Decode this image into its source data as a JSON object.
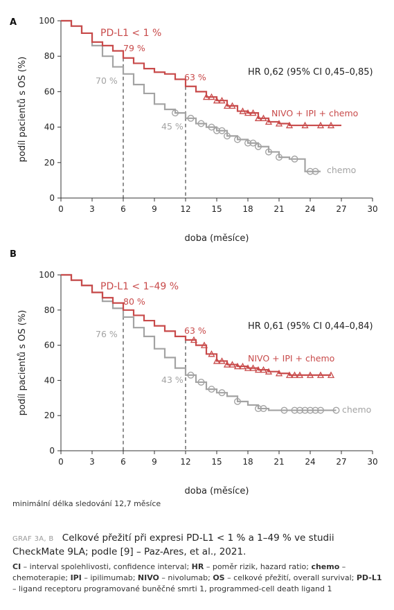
{
  "panels": [
    {
      "letter": "A",
      "annotations": {
        "subgroup": "PD-L1 < 1 %",
        "red_pct_6": "79 %",
        "grey_pct_6": "70 %",
        "red_pct_12": "63 %",
        "grey_pct_12": "45 %",
        "hr": "HR 0,62 (95% CI 0,45–0,85)",
        "red_label": "NIVO + IPI + chemo",
        "grey_label": "chemo"
      }
    },
    {
      "letter": "B",
      "annotations": {
        "subgroup": "PD-L1 < 1–49 %",
        "red_pct_6": "80 %",
        "grey_pct_6": "76 %",
        "red_pct_12": "63 %",
        "grey_pct_12": "43 %",
        "hr": "HR 0,61 (95% CI 0,44–0,84)",
        "red_label": "NIVO + IPI + chemo",
        "grey_label": "chemo"
      }
    }
  ],
  "chart_data": [
    {
      "type": "line",
      "title": "A",
      "xlabel": "doba (měsíce)",
      "ylabel": "podíl pacientů s OS (%)",
      "xlim": [
        0,
        30
      ],
      "ylim": [
        0,
        100
      ],
      "xticks": [
        0,
        3,
        6,
        9,
        12,
        15,
        18,
        21,
        24,
        27,
        30
      ],
      "yticks": [
        0,
        20,
        40,
        60,
        80,
        100
      ],
      "series": [
        {
          "name": "NIVO + IPI + chemo",
          "color": "#c84a4a",
          "x": [
            0,
            1,
            2,
            3,
            4,
            5,
            6,
            7,
            8,
            9,
            10,
            11,
            12,
            13,
            14,
            15,
            16,
            17,
            18,
            19,
            20,
            21,
            22,
            27
          ],
          "y": [
            100,
            97,
            93,
            88,
            86,
            83,
            79,
            76,
            73,
            71,
            70,
            67,
            63,
            60,
            57,
            55,
            52,
            49,
            48,
            45,
            43,
            42,
            41,
            41
          ],
          "censored_x": [
            14,
            14.5,
            15,
            15.5,
            16,
            16.5,
            17.5,
            18,
            18.5,
            19,
            19.5,
            20,
            21,
            22,
            23.5,
            25,
            26
          ]
        },
        {
          "name": "chemo",
          "color": "#a3a3a3",
          "x": [
            0,
            1,
            2,
            3,
            4,
            5,
            6,
            7,
            8,
            9,
            10,
            11,
            12,
            13,
            14,
            15,
            16,
            17,
            18,
            19,
            20,
            21,
            22,
            23.5,
            25
          ],
          "y": [
            100,
            97,
            93,
            86,
            80,
            74,
            70,
            64,
            59,
            53,
            50,
            48,
            45,
            42,
            40,
            38,
            35,
            33,
            31,
            29,
            26,
            23,
            22,
            15,
            15
          ],
          "censored_x": [
            11,
            12.5,
            13.5,
            14.5,
            15,
            15.5,
            16,
            17,
            18,
            18.5,
            19,
            20,
            21,
            22.5,
            24,
            24.5
          ]
        }
      ]
    },
    {
      "type": "line",
      "title": "B",
      "xlabel": "doba (měsíce)",
      "ylabel": "podíl pacientů s OS (%)",
      "xlim": [
        0,
        30
      ],
      "ylim": [
        0,
        100
      ],
      "xticks": [
        0,
        3,
        6,
        9,
        12,
        15,
        18,
        21,
        24,
        27,
        30
      ],
      "yticks": [
        0,
        20,
        40,
        60,
        80,
        100
      ],
      "series": [
        {
          "name": "NIVO + IPI + chemo",
          "color": "#c84a4a",
          "x": [
            0,
            1,
            2,
            3,
            4,
            5,
            6,
            7,
            8,
            9,
            10,
            11,
            12,
            13,
            14,
            15,
            16,
            17,
            18,
            19,
            20,
            21,
            22,
            26
          ],
          "y": [
            100,
            97,
            94,
            90,
            87,
            84,
            80,
            77,
            74,
            71,
            68,
            65,
            63,
            60,
            55,
            51,
            49,
            48,
            47,
            46,
            45,
            44,
            43,
            43
          ],
          "censored_x": [
            12.8,
            13.8,
            14.5,
            15,
            15.5,
            16,
            16.5,
            17,
            17.5,
            18,
            18.5,
            19,
            19.5,
            20,
            21,
            22,
            22.5,
            23,
            24,
            25,
            26
          ]
        },
        {
          "name": "chemo",
          "color": "#a3a3a3",
          "x": [
            0,
            1,
            2,
            3,
            4,
            5,
            6,
            7,
            8,
            9,
            10,
            11,
            12,
            13,
            14,
            15,
            16,
            17,
            18,
            19,
            20,
            26.5
          ],
          "y": [
            100,
            97,
            94,
            90,
            85,
            81,
            76,
            70,
            65,
            58,
            53,
            47,
            43,
            39,
            35,
            33,
            31,
            28,
            26,
            24,
            23,
            23
          ],
          "censored_x": [
            12.5,
            13.5,
            14.5,
            15.5,
            17,
            19,
            19.5,
            21.5,
            22.5,
            23,
            23.5,
            24,
            24.5,
            25,
            26.5
          ]
        }
      ]
    }
  ],
  "footer": {
    "note": "minimální délka sledování 12,7 měsíce",
    "caption_tag": "GRAF 3A, B",
    "caption": "Celkové přežití při expresi PD-L1 < 1 % a 1–49 % ve studii CheckMate 9LA; podle [9] – Paz-Ares, et al., 2021.",
    "abbreviations": [
      {
        "term": "CI",
        "def": "interval spolehlivosti, confidence interval"
      },
      {
        "term": "HR",
        "def": "poměr rizik, hazard ratio"
      },
      {
        "term": "chemo",
        "def": "chemoterapie"
      },
      {
        "term": "IPI",
        "def": "ipilimumab"
      },
      {
        "term": "NIVO",
        "def": "nivolumab"
      },
      {
        "term": "OS",
        "def": "celkové přežití, overall survival"
      },
      {
        "term": "PD-L1",
        "def": "ligand receptoru programované buněčné smrti 1, programmed-cell death ligand 1"
      }
    ]
  }
}
